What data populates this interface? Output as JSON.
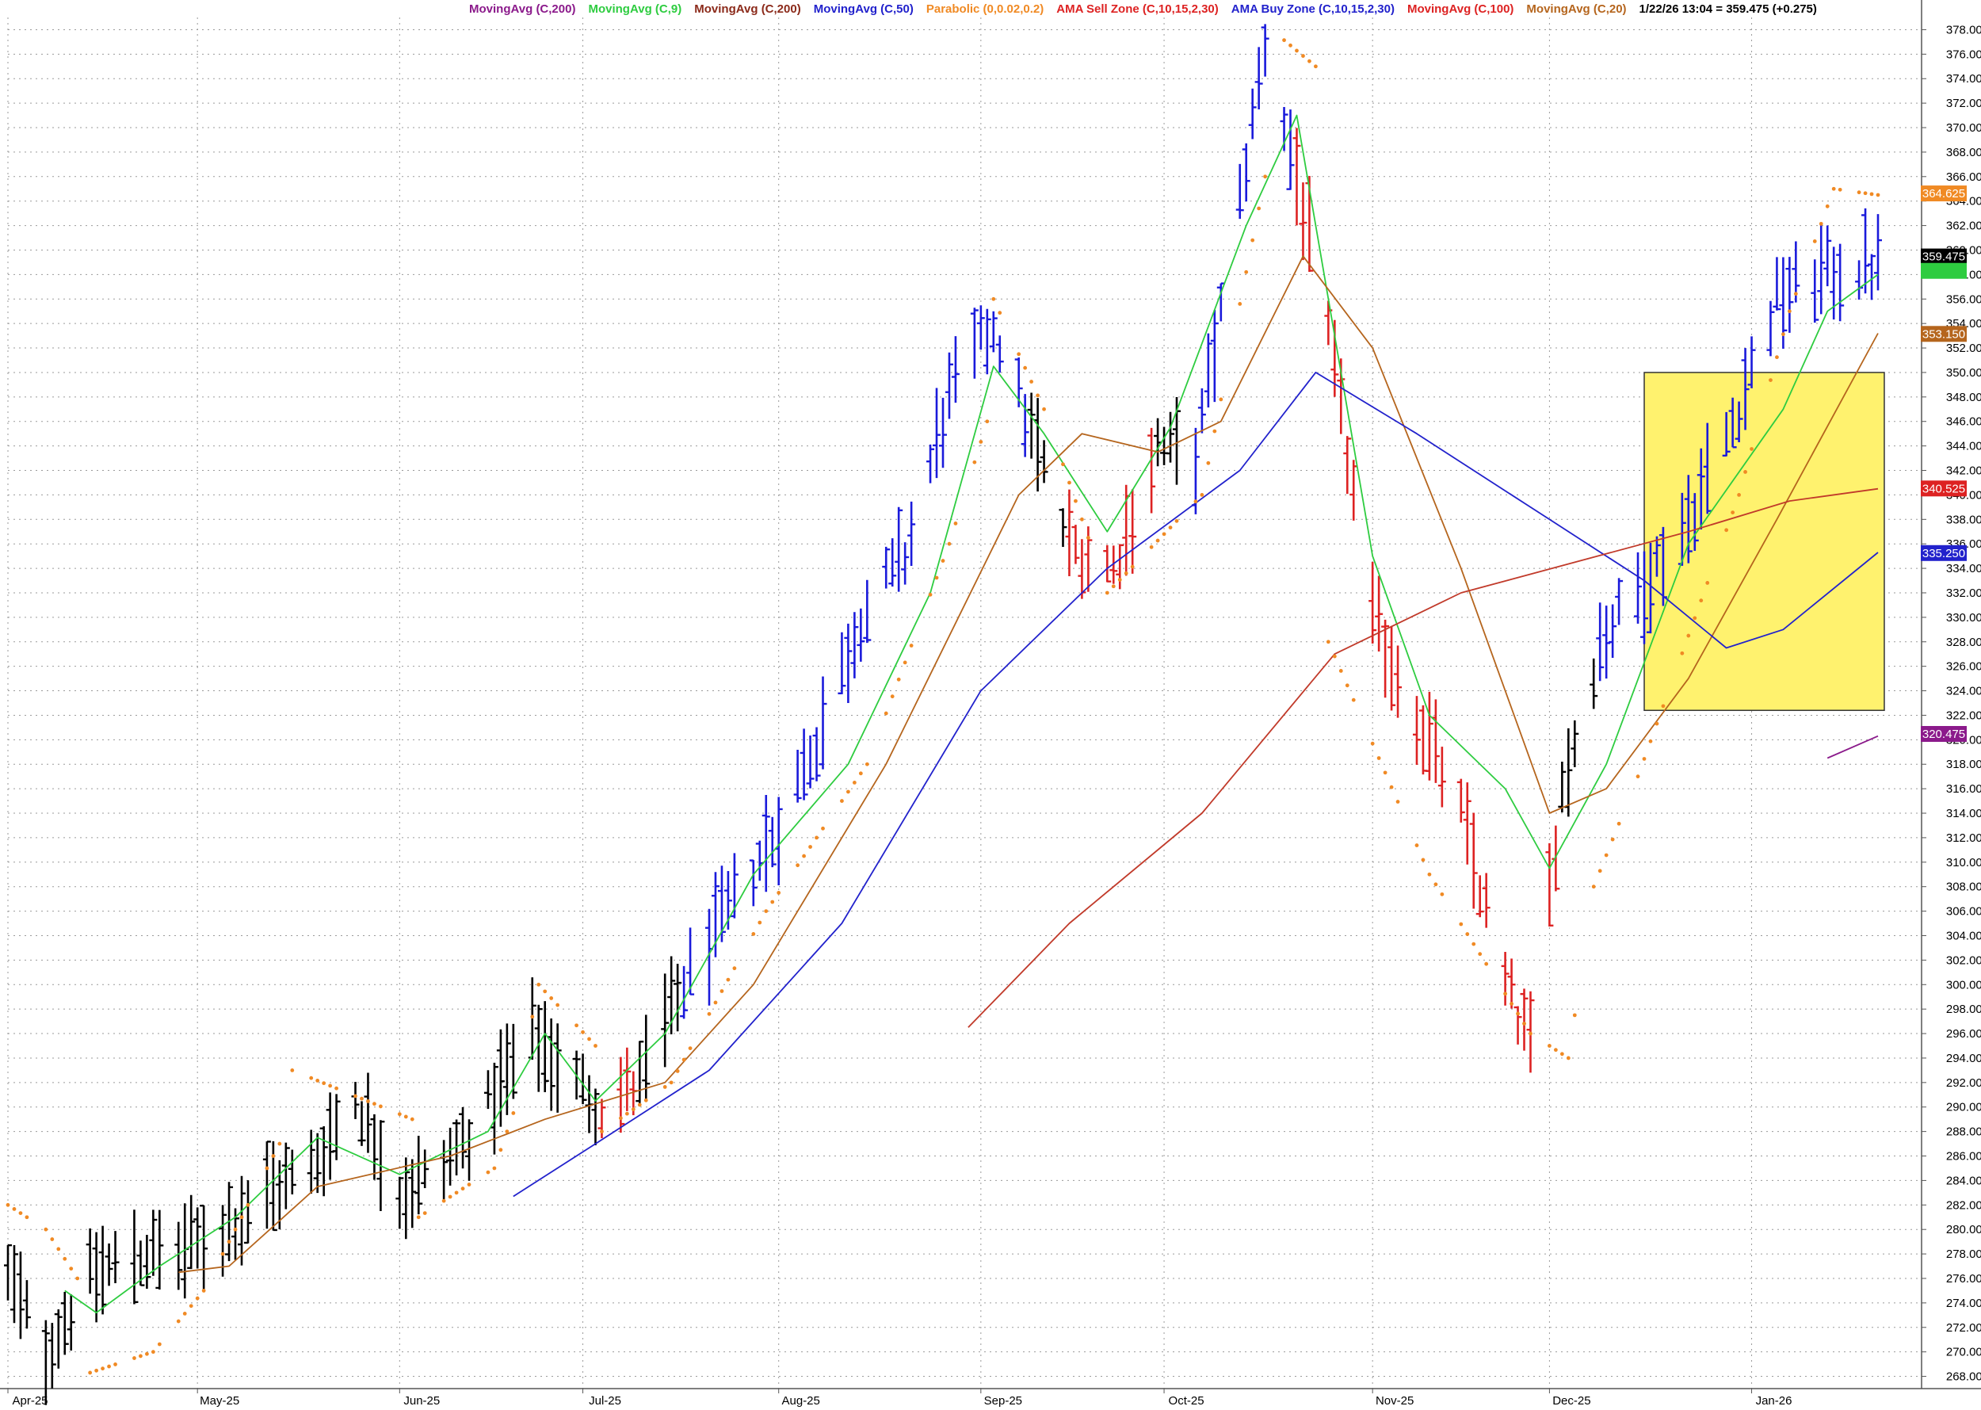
{
  "header": {
    "indicators": [
      {
        "label": "MovingAvg (C,200)",
        "color": "#8b1a8b"
      },
      {
        "label": "MovingAvg (C,9)",
        "color": "#2ecc40"
      },
      {
        "label": "MovingAvg (C,200)",
        "color": "#8b2a1a"
      },
      {
        "label": "MovingAvg (C,50)",
        "color": "#2222cc"
      },
      {
        "label": "Parabolic (0,0.02,0.2)",
        "color": "#f08a24"
      },
      {
        "label": "AMA Sell Zone (C,10,15,2,30)",
        "color": "#dd2222"
      },
      {
        "label": "AMA Buy Zone (C,10,15,2,30)",
        "color": "#2222cc"
      },
      {
        "label": "MovingAvg (C,100)",
        "color": "#dd2222"
      },
      {
        "label": "MovingAvg (C,20)",
        "color": "#b5651d"
      }
    ],
    "quote": "1/22/26 13:04 = 359.475 (+0.275)"
  },
  "chart_data": {
    "type": "line",
    "subtype": "ohlc-bar",
    "x_axis": {
      "labels": [
        "Apr-25",
        "May-25",
        "Jun-25",
        "Jul-25",
        "Aug-25",
        "Sep-25",
        "Oct-25",
        "Nov-25",
        "Dec-25",
        "Jan-26"
      ],
      "label_dates": [
        "2025-04-01",
        "2025-05-01",
        "2025-06-02",
        "2025-07-01",
        "2025-08-01",
        "2025-09-02",
        "2025-10-01",
        "2025-11-03",
        "2025-12-01",
        "2026-01-02"
      ],
      "range": [
        "2025-04-01",
        "2026-01-22"
      ]
    },
    "y_axis": {
      "side": "right",
      "min": 267,
      "max": 379,
      "tick_step": 2,
      "tick_start": 268,
      "tick_end": 378,
      "tick_decimals": 3,
      "grid": true
    },
    "price_tags": [
      {
        "value": 364.625,
        "label": "364.625",
        "bg": "#f08a24",
        "fg": "#ffffff"
      },
      {
        "value": 359.475,
        "label": "359.475",
        "bg": "#000000",
        "fg": "#ffffff"
      },
      {
        "value": 358.3,
        "label": "",
        "bg": "#2ecc40",
        "fg": "#ffffff"
      },
      {
        "value": 353.15,
        "label": "353.150",
        "bg": "#b5651d",
        "fg": "#ffffff"
      },
      {
        "value": 340.525,
        "label": "340.525",
        "bg": "#dd2222",
        "fg": "#ffffff"
      },
      {
        "value": 335.25,
        "label": "335.250",
        "bg": "#2222cc",
        "fg": "#ffffff"
      },
      {
        "value": 320.475,
        "label": "320.475",
        "bg": "#8b1a8b",
        "fg": "#ffffff"
      }
    ],
    "zone": {
      "x_start": "2025-12-16",
      "x_end": "2026-01-23",
      "y_low": 322.4,
      "y_high": 350.0,
      "color": "#fff26e"
    },
    "colors": {
      "up": "#1a1adb",
      "down": "#dd2222",
      "neutral": "#000000"
    },
    "bar_keys": [
      {
        "d": "2025-04-01",
        "p": 276.0,
        "c": "k"
      },
      {
        "d": "2025-04-07",
        "p": 270.0,
        "c": "k"
      },
      {
        "d": "2025-04-14",
        "p": 276.0,
        "c": "k"
      },
      {
        "d": "2025-04-21",
        "p": 278.0,
        "c": "k"
      },
      {
        "d": "2025-04-28",
        "p": 278.0,
        "c": "k"
      },
      {
        "d": "2025-05-05",
        "p": 280.0,
        "c": "k"
      },
      {
        "d": "2025-05-12",
        "p": 283.0,
        "c": "k"
      },
      {
        "d": "2025-05-19",
        "p": 285.0,
        "c": "k"
      },
      {
        "d": "2025-05-26",
        "p": 291.0,
        "c": "k"
      },
      {
        "d": "2025-06-02",
        "p": 283.0,
        "c": "k"
      },
      {
        "d": "2025-06-09",
        "p": 285.0,
        "c": "k"
      },
      {
        "d": "2025-06-16",
        "p": 290.0,
        "c": "k"
      },
      {
        "d": "2025-06-23",
        "p": 296.0,
        "c": "k"
      },
      {
        "d": "2025-06-30",
        "p": 292.0,
        "c": "k"
      },
      {
        "d": "2025-07-04",
        "p": 290.0,
        "c": "r"
      },
      {
        "d": "2025-07-10",
        "p": 292.0,
        "c": "k"
      },
      {
        "d": "2025-07-17",
        "p": 300.0,
        "c": "b"
      },
      {
        "d": "2025-07-24",
        "p": 306.0,
        "c": "b"
      },
      {
        "d": "2025-07-31",
        "p": 312.0,
        "c": "b"
      },
      {
        "d": "2025-08-07",
        "p": 320.0,
        "c": "b"
      },
      {
        "d": "2025-08-14",
        "p": 330.0,
        "c": "b"
      },
      {
        "d": "2025-08-21",
        "p": 335.0,
        "c": "b"
      },
      {
        "d": "2025-08-28",
        "p": 348.0,
        "c": "b"
      },
      {
        "d": "2025-09-04",
        "p": 354.0,
        "c": "b"
      },
      {
        "d": "2025-09-10",
        "p": 345.0,
        "c": "k"
      },
      {
        "d": "2025-09-16",
        "p": 336.0,
        "c": "r"
      },
      {
        "d": "2025-09-23",
        "p": 334.0,
        "c": "r"
      },
      {
        "d": "2025-09-30",
        "p": 344.0,
        "c": "k"
      },
      {
        "d": "2025-10-06",
        "p": 343.0,
        "c": "b"
      },
      {
        "d": "2025-10-13",
        "p": 364.0,
        "c": "b"
      },
      {
        "d": "2025-10-17",
        "p": 377.0,
        "c": "b"
      },
      {
        "d": "2025-10-22",
        "p": 366.0,
        "c": "r"
      },
      {
        "d": "2025-10-28",
        "p": 350.0,
        "c": "r"
      },
      {
        "d": "2025-11-03",
        "p": 330.0,
        "c": "r"
      },
      {
        "d": "2025-11-10",
        "p": 322.0,
        "c": "r"
      },
      {
        "d": "2025-11-17",
        "p": 314.0,
        "c": "r"
      },
      {
        "d": "2025-11-24",
        "p": 300.0,
        "c": "r"
      },
      {
        "d": "2025-11-28",
        "p": 295.0,
        "c": "r"
      },
      {
        "d": "2025-12-03",
        "p": 316.0,
        "c": "k"
      },
      {
        "d": "2025-12-09",
        "p": 328.0,
        "c": "b"
      },
      {
        "d": "2025-12-16",
        "p": 333.0,
        "c": "b"
      },
      {
        "d": "2025-12-23",
        "p": 338.0,
        "c": "b"
      },
      {
        "d": "2025-12-30",
        "p": 346.0,
        "c": "b"
      },
      {
        "d": "2026-01-06",
        "p": 356.0,
        "c": "b"
      },
      {
        "d": "2026-01-13",
        "p": 358.0,
        "c": "b"
      },
      {
        "d": "2026-01-22",
        "p": 358.8,
        "c": "k"
      }
    ],
    "series": [
      {
        "color": "#2ecc40",
        "values": [
          [
            "2025-04-10",
            275.0
          ],
          [
            "2025-04-15",
            273.2
          ],
          [
            "2025-04-25",
            277.0
          ],
          [
            "2025-05-07",
            281.0
          ],
          [
            "2025-05-20",
            287.5
          ],
          [
            "2025-06-02",
            284.5
          ],
          [
            "2025-06-16",
            288.0
          ],
          [
            "2025-06-25",
            296.0
          ],
          [
            "2025-07-03",
            290.5
          ],
          [
            "2025-07-14",
            296.0
          ],
          [
            "2025-07-28",
            309.0
          ],
          [
            "2025-08-12",
            318.0
          ],
          [
            "2025-08-25",
            332.0
          ],
          [
            "2025-09-04",
            350.5
          ],
          [
            "2025-09-12",
            345.0
          ],
          [
            "2025-09-22",
            337.0
          ],
          [
            "2025-10-02",
            345.5
          ],
          [
            "2025-10-14",
            362.0
          ],
          [
            "2025-10-22",
            371.0
          ],
          [
            "2025-11-03",
            335.0
          ],
          [
            "2025-11-12",
            322.0
          ],
          [
            "2025-11-24",
            316.0
          ],
          [
            "2025-12-01",
            309.5
          ],
          [
            "2025-12-10",
            318.0
          ],
          [
            "2025-12-23",
            336.0
          ],
          [
            "2026-01-07",
            347.0
          ],
          [
            "2026-01-14",
            355.0
          ],
          [
            "2026-01-22",
            358.0
          ]
        ]
      },
      {
        "color": "#b5651d",
        "values": [
          [
            "2025-04-28",
            276.5
          ],
          [
            "2025-05-06",
            277.0
          ],
          [
            "2025-05-20",
            283.5
          ],
          [
            "2025-06-10",
            286.0
          ],
          [
            "2025-06-25",
            289.0
          ],
          [
            "2025-07-14",
            292.0
          ],
          [
            "2025-07-28",
            300.0
          ],
          [
            "2025-08-18",
            318.0
          ],
          [
            "2025-09-08",
            340.0
          ],
          [
            "2025-09-18",
            345.0
          ],
          [
            "2025-09-30",
            343.5
          ],
          [
            "2025-10-10",
            346.0
          ],
          [
            "2025-10-23",
            359.5
          ],
          [
            "2025-11-03",
            352.0
          ],
          [
            "2025-11-17",
            334.0
          ],
          [
            "2025-12-01",
            314.0
          ],
          [
            "2025-12-10",
            316.0
          ],
          [
            "2025-12-23",
            325.0
          ],
          [
            "2026-01-06",
            338.0
          ],
          [
            "2026-01-22",
            353.2
          ]
        ]
      },
      {
        "color": "#2222cc",
        "values": [
          [
            "2025-06-20",
            282.7
          ],
          [
            "2025-07-03",
            287.0
          ],
          [
            "2025-07-21",
            293.0
          ],
          [
            "2025-08-11",
            305.0
          ],
          [
            "2025-09-02",
            324.0
          ],
          [
            "2025-09-22",
            334.0
          ],
          [
            "2025-10-13",
            342.0
          ],
          [
            "2025-10-25",
            350.0
          ],
          [
            "2025-11-10",
            345.0
          ],
          [
            "2025-12-01",
            338.0
          ],
          [
            "2025-12-16",
            333.0
          ],
          [
            "2025-12-29",
            327.5
          ],
          [
            "2026-01-07",
            329.0
          ],
          [
            "2026-01-22",
            335.3
          ]
        ]
      },
      {
        "color": "#c13a2a",
        "values": [
          [
            "2025-08-31",
            296.5
          ],
          [
            "2025-09-16",
            305.0
          ],
          [
            "2025-10-07",
            314.0
          ],
          [
            "2025-10-28",
            327.0
          ],
          [
            "2025-11-17",
            332.0
          ],
          [
            "2025-12-05",
            334.5
          ],
          [
            "2025-12-23",
            337.0
          ],
          [
            "2026-01-08",
            339.5
          ],
          [
            "2026-01-22",
            340.5
          ]
        ]
      },
      {
        "color": "#8b1a8b",
        "values": [
          [
            "2026-01-14",
            318.5
          ],
          [
            "2026-01-22",
            320.3
          ]
        ]
      }
    ],
    "sar": [
      {
        "color": "#f08a24",
        "values": [
          [
            "2025-04-01",
            282.0
          ],
          [
            "2025-04-07",
            280.0
          ],
          [
            "2025-04-12",
            276.0
          ],
          [
            "2025-04-14",
            268.3
          ],
          [
            "2025-04-24",
            270.0
          ],
          [
            "2025-05-02",
            275.0
          ],
          [
            "2025-05-14",
            287.0
          ],
          [
            "2025-05-16",
            293.0
          ],
          [
            "2025-06-04",
            289.0
          ],
          [
            "2025-06-05",
            281.0
          ],
          [
            "2025-06-17",
            285.0
          ],
          [
            "2025-06-20",
            289.5
          ],
          [
            "2025-06-24",
            300.0
          ],
          [
            "2025-07-03",
            295.0
          ],
          [
            "2025-07-04",
            288.0
          ],
          [
            "2025-07-15",
            292.0
          ],
          [
            "2025-07-30",
            306.0
          ],
          [
            "2025-08-15",
            318.0
          ],
          [
            "2025-08-28",
            336.0
          ],
          [
            "2025-09-03",
            346.0
          ],
          [
            "2025-09-04",
            356.0
          ],
          [
            "2025-09-12",
            347.0
          ],
          [
            "2025-09-22",
            332.0
          ],
          [
            "2025-10-07",
            340.0
          ],
          [
            "2025-10-17",
            366.0
          ],
          [
            "2025-10-18",
            378.0
          ],
          [
            "2025-10-25",
            375.0
          ],
          [
            "2025-10-27",
            328.0
          ],
          [
            "2025-11-12",
            309.0
          ],
          [
            "2025-11-28",
            296.0
          ],
          [
            "2025-12-04",
            294.0
          ],
          [
            "2025-12-08",
            308.0
          ],
          [
            "2025-12-15",
            317.0
          ],
          [
            "2025-12-31",
            340.0
          ],
          [
            "2026-01-08",
            355.0
          ],
          [
            "2026-01-15",
            365.0
          ],
          [
            "2026-01-22",
            364.5
          ]
        ]
      }
    ]
  }
}
